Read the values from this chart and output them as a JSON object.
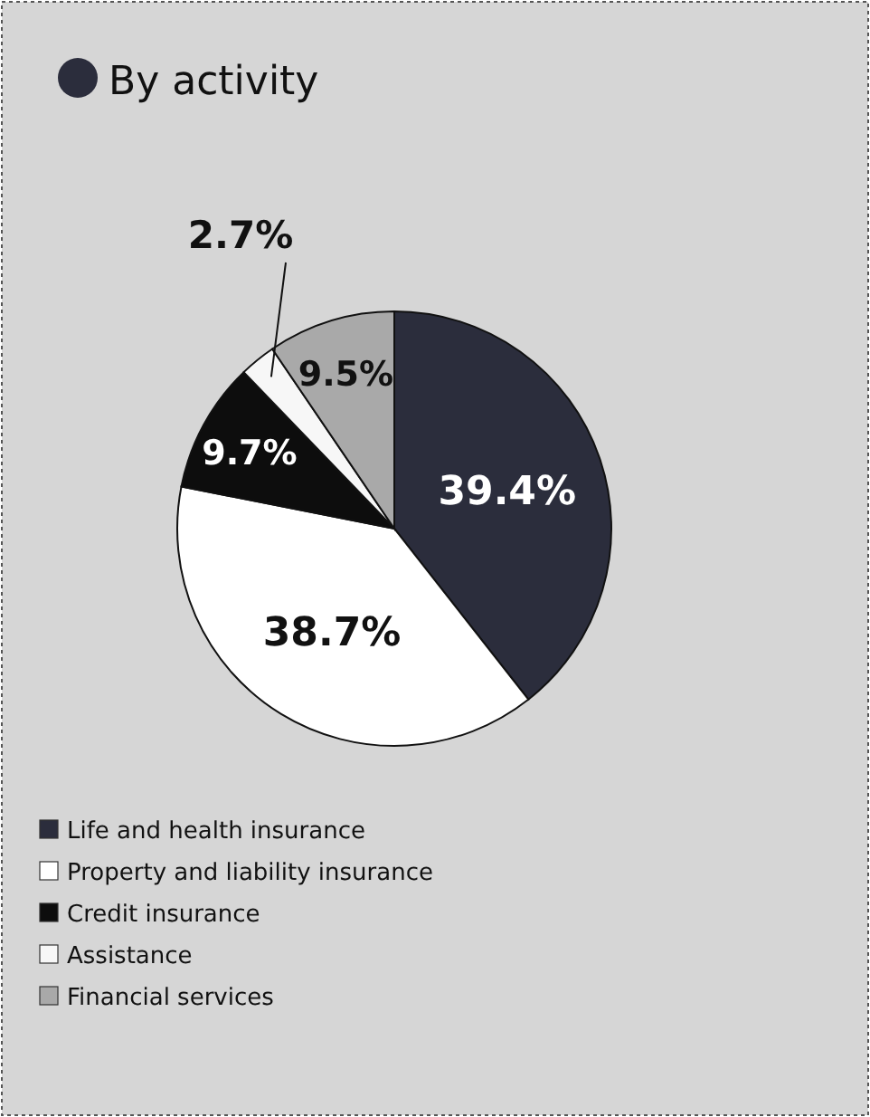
{
  "chart_data": {
    "type": "pie",
    "title": "By activity",
    "categories": [
      "Life and health insurance",
      "Property and liability insurance",
      "Credit insurance",
      "Assistance",
      "Financial services"
    ],
    "values": [
      39.4,
      38.7,
      9.7,
      2.7,
      9.5
    ],
    "colors": [
      "#2b2d3c",
      "#ffffff",
      "#0d0d0d",
      "#f7f7f7",
      "#a9a9a9"
    ],
    "value_labels": [
      "39.4%",
      "38.7%",
      "9.7%",
      "2.7%",
      "9.5%"
    ],
    "legend": "bottom left"
  }
}
